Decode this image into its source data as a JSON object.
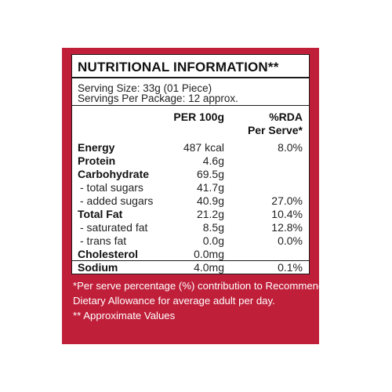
{
  "label": {
    "title": "NUTRITIONAL INFORMATION**",
    "serving_size": "Serving Size: 33g (01 Piece)",
    "servings_per_package": "Servings Per Package: 12 approx.",
    "col_per100g": "PER 100g",
    "col_rda_line1": "%RDA",
    "col_rda_line2": "Per Serve*",
    "rows": [
      {
        "name": "Energy",
        "per100": "487 kcal",
        "rda": "8.0%",
        "bold": true
      },
      {
        "name": "Protein",
        "per100": "4.6g",
        "rda": "",
        "bold": true
      },
      {
        "name": "Carbohydrate",
        "per100": "69.5g",
        "rda": "",
        "bold": true
      },
      {
        "name": "- total sugars",
        "per100": "41.7g",
        "rda": "",
        "bold": false
      },
      {
        "name": "- added sugars",
        "per100": "40.9g",
        "rda": "27.0%",
        "bold": false
      },
      {
        "name": "Total Fat",
        "per100": "21.2g",
        "rda": "10.4%",
        "bold": true
      },
      {
        "name": "- saturated fat",
        "per100": "8.5g",
        "rda": "12.8%",
        "bold": false
      },
      {
        "name": "- trans fat",
        "per100": "0.0g",
        "rda": "0.0%",
        "bold": false
      },
      {
        "name": "Cholesterol",
        "per100": "0.0mg",
        "rda": "",
        "bold": true
      },
      {
        "name": "Sodium",
        "per100": "4.0mg",
        "rda": "0.1%",
        "bold": true
      }
    ],
    "footnote_1": "*Per serve percentage (%) contribution to Recommended",
    "footnote_2": "Dietary Allowance for average adult per day.",
    "footnote_3": "** Approximate Values"
  },
  "colors": {
    "panel_background": "#c01f3a",
    "box_background": "#ffffff",
    "text": "#111111"
  }
}
